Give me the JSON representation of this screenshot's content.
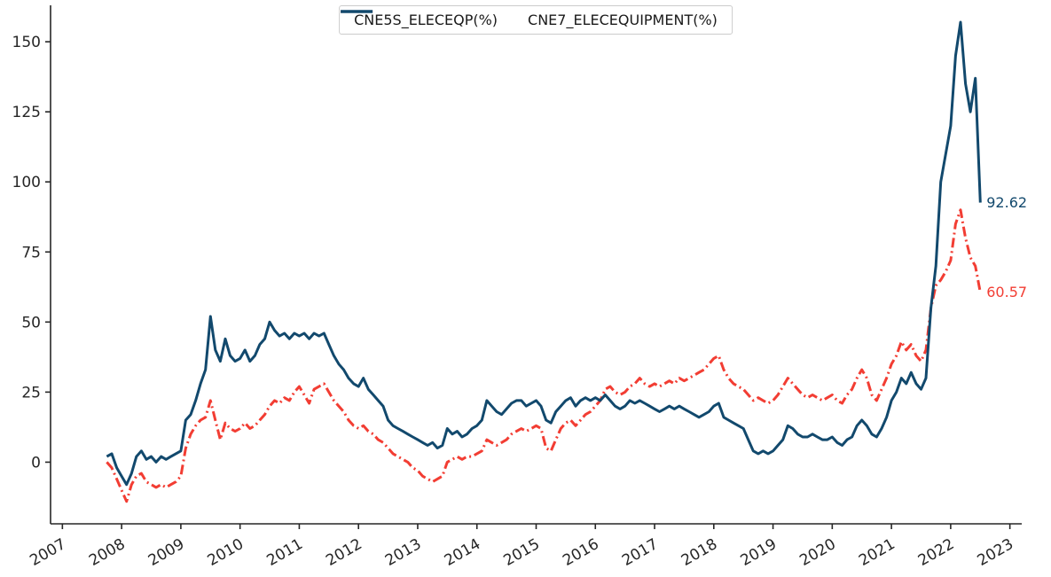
{
  "legend": {
    "position": "upper center"
  },
  "chart_data": {
    "type": "line",
    "title": "",
    "xlabel": "",
    "ylabel": "",
    "grid": false,
    "axis_color": "#262626",
    "tick_label_color": "#262626",
    "xlim": [
      2006.8,
      2023.2
    ],
    "ylim": [
      -22,
      163
    ],
    "x_ticks": [
      2007,
      2008,
      2009,
      2010,
      2011,
      2012,
      2013,
      2014,
      2015,
      2016,
      2017,
      2018,
      2019,
      2020,
      2021,
      2022,
      2023
    ],
    "y_ticks": [
      0,
      25,
      50,
      75,
      100,
      125,
      150
    ],
    "x": [
      2007.75,
      2007.833,
      2007.917,
      2008,
      2008.083,
      2008.167,
      2008.25,
      2008.333,
      2008.417,
      2008.5,
      2008.583,
      2008.667,
      2008.75,
      2008.833,
      2008.917,
      2009,
      2009.083,
      2009.167,
      2009.25,
      2009.333,
      2009.417,
      2009.5,
      2009.583,
      2009.667,
      2009.75,
      2009.833,
      2009.917,
      2010,
      2010.083,
      2010.167,
      2010.25,
      2010.333,
      2010.417,
      2010.5,
      2010.583,
      2010.667,
      2010.75,
      2010.833,
      2010.917,
      2011,
      2011.083,
      2011.167,
      2011.25,
      2011.333,
      2011.417,
      2011.5,
      2011.583,
      2011.667,
      2011.75,
      2011.833,
      2011.917,
      2012,
      2012.083,
      2012.167,
      2012.25,
      2012.333,
      2012.417,
      2012.5,
      2012.583,
      2012.667,
      2012.75,
      2012.833,
      2012.917,
      2013,
      2013.083,
      2013.167,
      2013.25,
      2013.333,
      2013.417,
      2013.5,
      2013.583,
      2013.667,
      2013.75,
      2013.833,
      2013.917,
      2014,
      2014.083,
      2014.167,
      2014.25,
      2014.333,
      2014.417,
      2014.5,
      2014.583,
      2014.667,
      2014.75,
      2014.833,
      2014.917,
      2015,
      2015.083,
      2015.167,
      2015.25,
      2015.333,
      2015.417,
      2015.5,
      2015.583,
      2015.667,
      2015.75,
      2015.833,
      2015.917,
      2016,
      2016.083,
      2016.167,
      2016.25,
      2016.333,
      2016.417,
      2016.5,
      2016.583,
      2016.667,
      2016.75,
      2016.833,
      2016.917,
      2017,
      2017.083,
      2017.167,
      2017.25,
      2017.333,
      2017.417,
      2017.5,
      2017.583,
      2017.667,
      2017.75,
      2017.833,
      2017.917,
      2018,
      2018.083,
      2018.167,
      2018.25,
      2018.333,
      2018.417,
      2018.5,
      2018.583,
      2018.667,
      2018.75,
      2018.833,
      2018.917,
      2019,
      2019.083,
      2019.167,
      2019.25,
      2019.333,
      2019.417,
      2019.5,
      2019.583,
      2019.667,
      2019.75,
      2019.833,
      2019.917,
      2020,
      2020.083,
      2020.167,
      2020.25,
      2020.333,
      2020.417,
      2020.5,
      2020.583,
      2020.667,
      2020.75,
      2020.833,
      2020.917,
      2021,
      2021.083,
      2021.167,
      2021.25,
      2021.333,
      2021.417,
      2021.5,
      2021.583,
      2021.667,
      2021.75,
      2021.833,
      2021.917,
      2022,
      2022.083,
      2022.167,
      2022.25,
      2022.333,
      2022.417,
      2022.5
    ],
    "series": [
      {
        "name": "CNE5S_ELECEQP(%)",
        "color": "#f23d33",
        "style": "dashdot",
        "end_label": "60.57",
        "values": [
          0,
          -2,
          -6,
          -10,
          -14,
          -8,
          -5,
          -4,
          -7,
          -8,
          -9,
          -8,
          -9,
          -8,
          -7,
          -5,
          5,
          10,
          13,
          15,
          16,
          22,
          15,
          8,
          14,
          12,
          11,
          12,
          14,
          12,
          13,
          15,
          17,
          20,
          22,
          21,
          23,
          22,
          25,
          27,
          24,
          21,
          26,
          27,
          28,
          25,
          22,
          20,
          18,
          15,
          13,
          12,
          13,
          11,
          10,
          8,
          7,
          5,
          3,
          2,
          1,
          0,
          -2,
          -3,
          -5,
          -6,
          -7,
          -6,
          -5,
          0,
          1,
          2,
          1,
          2,
          2,
          3,
          4,
          8,
          7,
          6,
          7,
          8,
          10,
          11,
          12,
          11,
          12,
          13,
          12,
          5,
          4,
          8,
          12,
          14,
          15,
          13,
          15,
          17,
          18,
          20,
          22,
          26,
          27,
          25,
          24,
          25,
          27,
          28,
          30,
          28,
          27,
          28,
          27,
          28,
          29,
          28,
          30,
          29,
          30,
          31,
          32,
          33,
          35,
          37,
          38,
          33,
          30,
          28,
          27,
          26,
          24,
          22,
          23,
          22,
          21,
          22,
          24,
          27,
          30,
          28,
          26,
          24,
          23,
          24,
          23,
          22,
          23,
          24,
          22,
          21,
          24,
          26,
          30,
          33,
          30,
          24,
          22,
          26,
          30,
          35,
          38,
          43,
          40,
          42,
          38,
          36,
          40,
          55,
          63,
          65,
          68,
          72,
          85,
          90,
          80,
          73,
          70,
          60.57
        ]
      },
      {
        "name": "CNE7_ELECEQUIPMENT(%)",
        "color": "#12496d",
        "style": "solid",
        "end_label": "92.62",
        "values": [
          2,
          3,
          -2,
          -5,
          -8,
          -4,
          2,
          4,
          1,
          2,
          0,
          2,
          1,
          2,
          3,
          4,
          15,
          17,
          22,
          28,
          33,
          52,
          40,
          36,
          44,
          38,
          36,
          37,
          40,
          36,
          38,
          42,
          44,
          50,
          47,
          45,
          46,
          44,
          46,
          45,
          46,
          44,
          46,
          45,
          46,
          42,
          38,
          35,
          33,
          30,
          28,
          27,
          30,
          26,
          24,
          22,
          20,
          15,
          13,
          12,
          11,
          10,
          9,
          8,
          7,
          6,
          7,
          5,
          6,
          12,
          10,
          11,
          9,
          10,
          12,
          13,
          15,
          22,
          20,
          18,
          17,
          19,
          21,
          22,
          22,
          20,
          21,
          22,
          20,
          15,
          14,
          18,
          20,
          22,
          23,
          20,
          22,
          23,
          22,
          23,
          22,
          24,
          22,
          20,
          19,
          20,
          22,
          21,
          22,
          21,
          20,
          19,
          18,
          19,
          20,
          19,
          20,
          19,
          18,
          17,
          16,
          17,
          18,
          20,
          21,
          16,
          15,
          14,
          13,
          12,
          8,
          4,
          3,
          4,
          3,
          4,
          6,
          8,
          13,
          12,
          10,
          9,
          9,
          10,
          9,
          8,
          8,
          9,
          7,
          6,
          8,
          9,
          13,
          15,
          13,
          10,
          9,
          12,
          16,
          22,
          25,
          30,
          28,
          32,
          28,
          26,
          30,
          55,
          70,
          100,
          110,
          120,
          145,
          157,
          135,
          125,
          137,
          92.62
        ]
      }
    ]
  }
}
